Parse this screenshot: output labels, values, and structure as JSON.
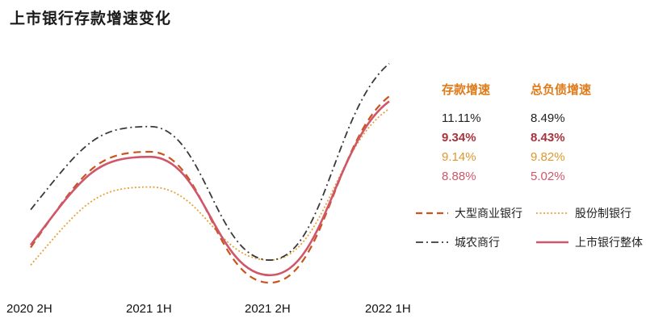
{
  "colors": {
    "large_bank": "#c8541e",
    "joint_stock": "#e8a23a",
    "city_bank": "#3a3a3a",
    "overall": "#d0566a",
    "header": "#e07b1a"
  },
  "chart_data": {
    "type": "line",
    "title": "上市银行存款增速变化",
    "categories": [
      "2020 2H",
      "2021 1H",
      "2021 2H",
      "2022 1H"
    ],
    "legend_placement": "right",
    "grid": false,
    "series": [
      {
        "name": "大型商业银行",
        "style": "dashed",
        "values": [
          8.6,
          12.4,
          7.2,
          14.6
        ]
      },
      {
        "name": "股份制银行",
        "style": "dotted",
        "values": [
          7.9,
          11.0,
          8.1,
          14.1
        ]
      },
      {
        "name": "城农商行",
        "style": "dashdot",
        "values": [
          10.1,
          13.4,
          8.1,
          15.9
        ]
      },
      {
        "name": "上市银行整体",
        "style": "solid",
        "values": [
          8.7,
          12.2,
          7.5,
          14.4
        ]
      }
    ],
    "table": {
      "headers": [
        "存款增速",
        "总负债增速"
      ],
      "rows": [
        {
          "deposit": "11.11%",
          "liability": "8.49%",
          "color": "#222222",
          "bold": false
        },
        {
          "deposit": "9.34%",
          "liability": "8.43%",
          "color": "#a8323c",
          "bold": true
        },
        {
          "deposit": "9.14%",
          "liability": "9.82%",
          "color": "#e0972a",
          "bold": false
        },
        {
          "deposit": "8.88%",
          "liability": "5.02%",
          "color": "#d0566a",
          "bold": false
        }
      ]
    }
  }
}
